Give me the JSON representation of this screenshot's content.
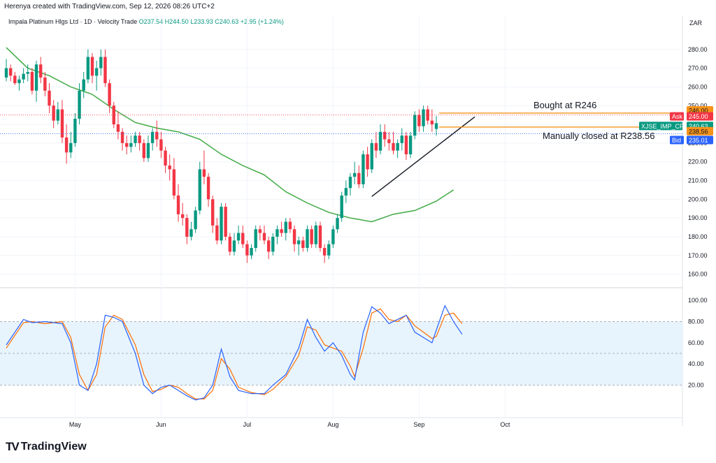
{
  "header": {
    "publisher": "Herenya created with TradingView.com, Sep 12, 2026 08:26 UTC+2"
  },
  "symbol_line": {
    "name": "Impala Platinum Hlgs Ltd · 1D · Velocity Trade",
    "open": "O237.54",
    "high": "H244.50",
    "low": "L233.93",
    "close": "C240.63",
    "change": "+2.95 (+1.24%)"
  },
  "currency": "ZAR",
  "brand": {
    "logo": "TV",
    "name": "TradingView"
  },
  "colors": {
    "up": "#089981",
    "down": "#f23645",
    "ma": "#4caf50",
    "k_line": "#2962ff",
    "d_line": "#ff6d00",
    "trend": "#131722",
    "ask": "#f23645",
    "bid": "#2962ff",
    "last": "#089981",
    "level": "#f7931a"
  },
  "chart_data": {
    "type": "candlestick",
    "price_axis": {
      "min": 160,
      "max": 280,
      "ticks": [
        "160.00",
        "170.00",
        "180.00",
        "190.00",
        "200.00",
        "210.00",
        "220.00",
        "230.00",
        "240.00",
        "250.00",
        "260.00",
        "270.00",
        "280.00"
      ]
    },
    "time_axis": {
      "labels": [
        "May",
        "Jun",
        "Jul",
        "Aug",
        "Sep",
        "Oct"
      ],
      "label_index": [
        16,
        36,
        56,
        76,
        96,
        116
      ]
    },
    "candles": [
      [
        265,
        275,
        263,
        270
      ],
      [
        270,
        272,
        263,
        266
      ],
      [
        266,
        268,
        261,
        262
      ],
      [
        262,
        266,
        258,
        264
      ],
      [
        264,
        270,
        262,
        267
      ],
      [
        267,
        272,
        263,
        268
      ],
      [
        268,
        270,
        256,
        258
      ],
      [
        258,
        274,
        252,
        272
      ],
      [
        272,
        276,
        262,
        265
      ],
      [
        265,
        268,
        255,
        258
      ],
      [
        258,
        262,
        246,
        250
      ],
      [
        250,
        253,
        238,
        242
      ],
      [
        242,
        252,
        240,
        248
      ],
      [
        248,
        253,
        230,
        233
      ],
      [
        233,
        240,
        219,
        225
      ],
      [
        225,
        236,
        222,
        230
      ],
      [
        230,
        246,
        228,
        243
      ],
      [
        243,
        262,
        240,
        258
      ],
      [
        258,
        268,
        254,
        264
      ],
      [
        264,
        280,
        262,
        276
      ],
      [
        276,
        278,
        262,
        266
      ],
      [
        266,
        274,
        258,
        270
      ],
      [
        270,
        280,
        266,
        276
      ],
      [
        276,
        280,
        260,
        262
      ],
      [
        262,
        264,
        246,
        250
      ],
      [
        250,
        252,
        238,
        240
      ],
      [
        240,
        247,
        232,
        236
      ],
      [
        236,
        238,
        226,
        230
      ],
      [
        230,
        234,
        224,
        228
      ],
      [
        228,
        234,
        225,
        230
      ],
      [
        230,
        236,
        228,
        234
      ],
      [
        234,
        236,
        226,
        230
      ],
      [
        230,
        232,
        220,
        222
      ],
      [
        222,
        234,
        220,
        230
      ],
      [
        230,
        238,
        226,
        236
      ],
      [
        236,
        242,
        228,
        232
      ],
      [
        232,
        236,
        222,
        226
      ],
      [
        226,
        228,
        214,
        218
      ],
      [
        218,
        224,
        210,
        216
      ],
      [
        216,
        222,
        200,
        202
      ],
      [
        202,
        208,
        188,
        192
      ],
      [
        192,
        198,
        186,
        190
      ],
      [
        190,
        192,
        176,
        180
      ],
      [
        180,
        188,
        178,
        184
      ],
      [
        184,
        196,
        182,
        194
      ],
      [
        194,
        220,
        192,
        216
      ],
      [
        216,
        226,
        208,
        212
      ],
      [
        212,
        214,
        196,
        200
      ],
      [
        200,
        202,
        182,
        186
      ],
      [
        186,
        190,
        176,
        178
      ],
      [
        178,
        198,
        176,
        196
      ],
      [
        196,
        198,
        178,
        180
      ],
      [
        180,
        182,
        170,
        172
      ],
      [
        172,
        182,
        170,
        178
      ],
      [
        178,
        186,
        176,
        182
      ],
      [
        182,
        186,
        174,
        176
      ],
      [
        176,
        178,
        166,
        170
      ],
      [
        170,
        176,
        168,
        174
      ],
      [
        174,
        186,
        172,
        184
      ],
      [
        184,
        186,
        178,
        182
      ],
      [
        182,
        186,
        176,
        178
      ],
      [
        178,
        180,
        168,
        172
      ],
      [
        172,
        182,
        170,
        180
      ],
      [
        180,
        186,
        176,
        184
      ],
      [
        184,
        188,
        180,
        182
      ],
      [
        182,
        190,
        178,
        188
      ],
      [
        188,
        190,
        182,
        184
      ],
      [
        184,
        186,
        172,
        176
      ],
      [
        176,
        180,
        170,
        178
      ],
      [
        178,
        180,
        172,
        174
      ],
      [
        174,
        186,
        172,
        184
      ],
      [
        184,
        186,
        174,
        176
      ],
      [
        176,
        188,
        174,
        186
      ],
      [
        186,
        188,
        172,
        174
      ],
      [
        174,
        176,
        166,
        170
      ],
      [
        170,
        178,
        168,
        176
      ],
      [
        176,
        186,
        174,
        184
      ],
      [
        184,
        192,
        182,
        190
      ],
      [
        190,
        204,
        188,
        202
      ],
      [
        202,
        210,
        198,
        206
      ],
      [
        206,
        214,
        202,
        212
      ],
      [
        212,
        220,
        208,
        214
      ],
      [
        214,
        218,
        206,
        208
      ],
      [
        208,
        226,
        206,
        224
      ],
      [
        224,
        228,
        212,
        216
      ],
      [
        216,
        232,
        214,
        230
      ],
      [
        230,
        236,
        222,
        226
      ],
      [
        226,
        240,
        224,
        236
      ],
      [
        236,
        240,
        228,
        232
      ],
      [
        232,
        236,
        226,
        230
      ],
      [
        230,
        236,
        224,
        226
      ],
      [
        226,
        232,
        222,
        230
      ],
      [
        230,
        238,
        226,
        234
      ],
      [
        234,
        236,
        221,
        224
      ],
      [
        224,
        236,
        222,
        234
      ],
      [
        234,
        247,
        232,
        245
      ],
      [
        245,
        248,
        236,
        239
      ],
      [
        239,
        250,
        236,
        248
      ],
      [
        248,
        250,
        240,
        242
      ],
      [
        242,
        248,
        236,
        240
      ],
      [
        237.54,
        244.5,
        233.93,
        240.63
      ]
    ],
    "moving_average": [
      [
        0,
        281
      ],
      [
        5,
        270
      ],
      [
        10,
        266
      ],
      [
        15,
        260
      ],
      [
        20,
        256
      ],
      [
        25,
        248
      ],
      [
        30,
        241
      ],
      [
        35,
        238
      ],
      [
        40,
        236
      ],
      [
        45,
        232
      ],
      [
        50,
        224
      ],
      [
        55,
        218
      ],
      [
        60,
        213
      ],
      [
        65,
        204
      ],
      [
        70,
        198
      ],
      [
        75,
        193
      ],
      [
        80,
        190
      ],
      [
        85,
        188
      ],
      [
        90,
        192
      ],
      [
        95,
        194
      ],
      [
        100,
        199
      ],
      [
        104,
        205
      ]
    ],
    "trendline": {
      "from": [
        85,
        201.5
      ],
      "to": [
        107,
        244
      ]
    },
    "levels": {
      "bought": {
        "price": 246,
        "label": "Bought at R246"
      },
      "closed": {
        "price": 238.56,
        "label": "Manually closed at R238.56"
      }
    },
    "price_tags": {
      "bought": "246.00",
      "ask": {
        "label": "Ask",
        "value": "245.00"
      },
      "last": {
        "label": "XJSE_IMP_CFD",
        "value": "240.63"
      },
      "closed": "238.56",
      "bid": {
        "label": "Bid",
        "value": "235.01"
      }
    },
    "oscillator": {
      "axis_ticks": [
        "20.00",
        "40.00",
        "60.00",
        "80.00",
        "100.00"
      ],
      "upper": 80,
      "lower": 20,
      "k": [
        [
          0,
          58
        ],
        [
          4,
          82
        ],
        [
          6,
          79
        ],
        [
          9,
          80
        ],
        [
          13,
          78
        ],
        [
          15,
          60
        ],
        [
          17,
          20
        ],
        [
          19,
          15
        ],
        [
          21,
          40
        ],
        [
          23,
          86
        ],
        [
          25,
          84
        ],
        [
          27,
          80
        ],
        [
          30,
          50
        ],
        [
          32,
          20
        ],
        [
          34,
          12
        ],
        [
          36,
          18
        ],
        [
          38,
          20
        ],
        [
          40,
          15
        ],
        [
          42,
          10
        ],
        [
          44,
          6
        ],
        [
          46,
          8
        ],
        [
          48,
          20
        ],
        [
          50,
          54
        ],
        [
          52,
          28
        ],
        [
          54,
          15
        ],
        [
          57,
          12
        ],
        [
          60,
          12
        ],
        [
          62,
          20
        ],
        [
          65,
          30
        ],
        [
          68,
          55
        ],
        [
          70,
          82
        ],
        [
          72,
          65
        ],
        [
          74,
          52
        ],
        [
          76,
          60
        ],
        [
          78,
          48
        ],
        [
          80,
          30
        ],
        [
          81,
          25
        ],
        [
          83,
          70
        ],
        [
          85,
          94
        ],
        [
          87,
          88
        ],
        [
          89,
          78
        ],
        [
          91,
          82
        ],
        [
          93,
          86
        ],
        [
          95,
          70
        ],
        [
          97,
          65
        ],
        [
          99,
          60
        ],
        [
          100,
          72
        ],
        [
          102,
          95
        ],
        [
          104,
          80
        ],
        [
          106,
          68
        ]
      ],
      "d": [
        [
          0,
          55
        ],
        [
          4,
          79
        ],
        [
          6,
          80
        ],
        [
          9,
          78
        ],
        [
          13,
          80
        ],
        [
          15,
          65
        ],
        [
          17,
          30
        ],
        [
          19,
          15
        ],
        [
          21,
          30
        ],
        [
          23,
          75
        ],
        [
          25,
          86
        ],
        [
          27,
          82
        ],
        [
          30,
          58
        ],
        [
          32,
          30
        ],
        [
          34,
          14
        ],
        [
          36,
          16
        ],
        [
          38,
          20
        ],
        [
          40,
          18
        ],
        [
          42,
          12
        ],
        [
          44,
          7
        ],
        [
          46,
          7
        ],
        [
          48,
          15
        ],
        [
          50,
          45
        ],
        [
          52,
          35
        ],
        [
          54,
          18
        ],
        [
          57,
          13
        ],
        [
          60,
          11
        ],
        [
          62,
          16
        ],
        [
          65,
          28
        ],
        [
          68,
          48
        ],
        [
          70,
          75
        ],
        [
          72,
          72
        ],
        [
          74,
          58
        ],
        [
          76,
          55
        ],
        [
          78,
          52
        ],
        [
          80,
          38
        ],
        [
          81,
          28
        ],
        [
          83,
          55
        ],
        [
          85,
          88
        ],
        [
          87,
          92
        ],
        [
          89,
          82
        ],
        [
          91,
          80
        ],
        [
          93,
          86
        ],
        [
          95,
          76
        ],
        [
          97,
          70
        ],
        [
          99,
          64
        ],
        [
          100,
          66
        ],
        [
          102,
          86
        ],
        [
          104,
          88
        ],
        [
          106,
          78
        ]
      ]
    }
  }
}
